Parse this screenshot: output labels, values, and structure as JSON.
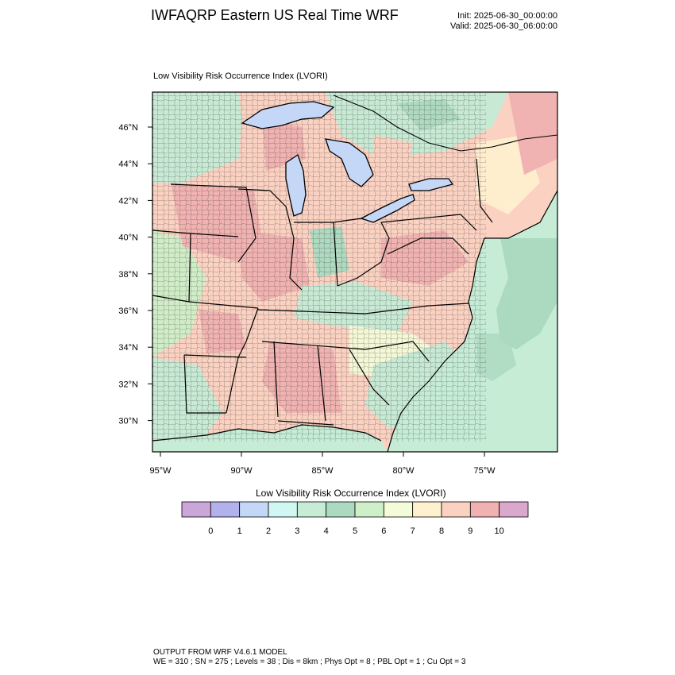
{
  "header": {
    "title": "IWFAQRP Eastern US Real Time WRF",
    "init": "Init: 2025-06-30_00:00:00",
    "valid": "Valid: 2025-06-30_06:00:00"
  },
  "field_title": "Low Visibility Risk Occurrence Index   (LVORI)",
  "map": {
    "lat_labels": [
      "46°N",
      "44°N",
      "42°N",
      "40°N",
      "38°N",
      "36°N",
      "34°N",
      "32°N",
      "30°N"
    ],
    "lon_labels": [
      "95°W",
      "90°W",
      "85°W",
      "80°W",
      "75°W"
    ]
  },
  "colorbar": {
    "title": "Low Visibility Risk Occurrence Index  (LVORI)",
    "colors": [
      "#cba6d9",
      "#b2b1ec",
      "#c5d7f7",
      "#d0f7f2",
      "#c6ecd6",
      "#abdac0",
      "#cfefc9",
      "#f4fbd8",
      "#fff0cf",
      "#fbd2c2",
      "#f0b2b1",
      "#d9a8cc"
    ],
    "labels": [
      "0",
      "1",
      "2",
      "3",
      "4",
      "5",
      "6",
      "7",
      "8",
      "9",
      "10"
    ]
  },
  "footer": {
    "line1": "OUTPUT FROM WRF V4.6.1 MODEL",
    "line2": "WE = 310 ; SN = 275 ; Levels = 38 ; Dis = 8km ; Phys Opt = 8 ; PBL Opt = 1 ; Cu Opt = 3"
  }
}
